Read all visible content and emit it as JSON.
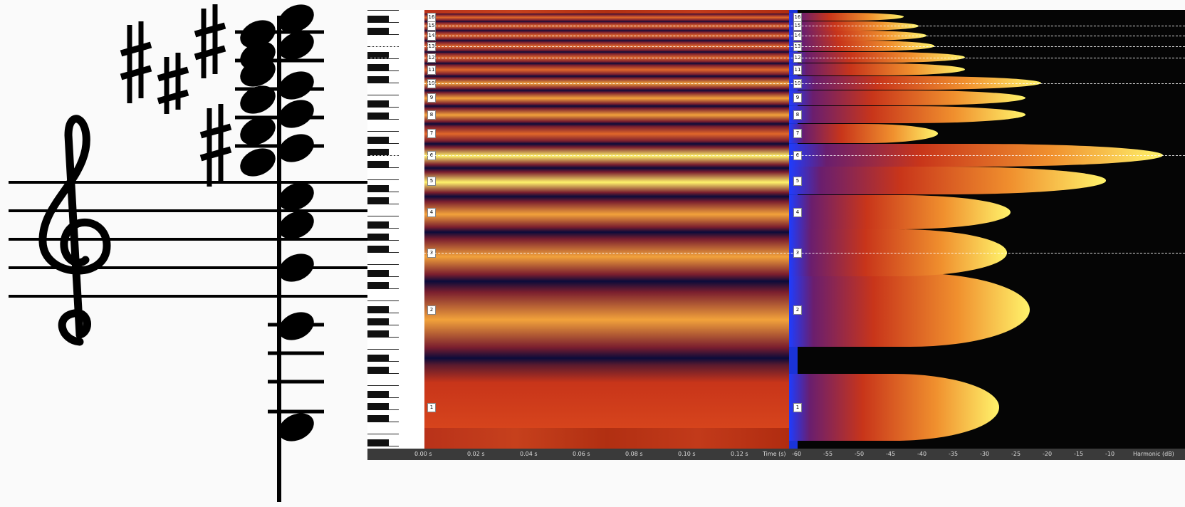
{
  "colors": {
    "spectrogram_high": "#fff36b",
    "spectrogram_mid": "#f2a23b",
    "spectrogram_low": "#c8351a",
    "trough": "#0b0b3a",
    "energy_base": "#1e3cff",
    "energy_bg": "#050505"
  },
  "notation": {
    "clef_icon": "treble-clef-icon",
    "accidental_icon": "sharp-icon",
    "notehead_icon": "notehead-icon"
  },
  "chart_data": {
    "type": "heatmap",
    "harmonics": [
      {
        "label": "1",
        "level": 0.55
      },
      {
        "label": "2",
        "level": 0.63
      },
      {
        "label": "3",
        "level": 0.57
      },
      {
        "label": "4",
        "level": 0.58
      },
      {
        "label": "5",
        "level": 0.83
      },
      {
        "label": "6",
        "level": 0.98
      },
      {
        "label": "7",
        "level": 0.39
      },
      {
        "label": "8",
        "level": 0.62
      },
      {
        "label": "9",
        "level": 0.62
      },
      {
        "label": "10",
        "level": 0.66
      },
      {
        "label": "11",
        "level": 0.46
      },
      {
        "label": "12",
        "level": 0.46
      },
      {
        "label": "13",
        "level": 0.38
      },
      {
        "label": "14",
        "level": 0.36
      },
      {
        "label": "15",
        "level": 0.34
      },
      {
        "label": "16",
        "level": 0.3
      }
    ],
    "time_ticks": [
      "0.00 s",
      "0.02 s",
      "0.04 s",
      "0.06 s",
      "0.08 s",
      "0.10 s",
      "0.12 s"
    ],
    "time_axis_label": "Time (s)",
    "level_ticks": [
      "-60",
      "-55",
      "-50",
      "-45",
      "-40",
      "-35",
      "-30",
      "-25",
      "-20",
      "-15",
      "-10"
    ],
    "level_axis_label": "Harmonic (dB)"
  }
}
